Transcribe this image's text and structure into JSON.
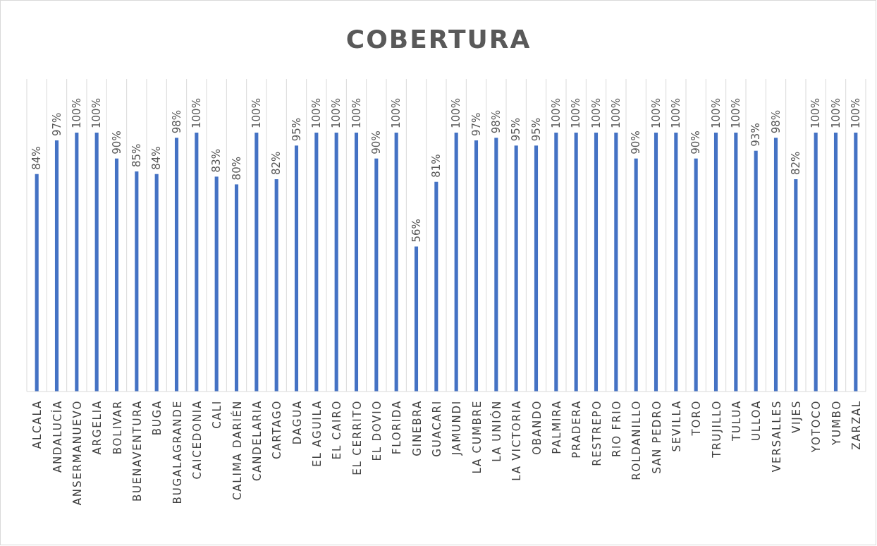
{
  "chart_data": {
    "type": "bar",
    "title": "COBERTURA",
    "categories": [
      "ALCALA",
      "ANDALUCÍA",
      "ANSERMANUEVO",
      "ARGELIA",
      "BOLIVAR",
      "BUENAVENTURA",
      "BUGA",
      "BUGALAGRANDE",
      "CAICEDONIA",
      "CALI",
      "CALIMA DARIÉN",
      "CANDELARIA",
      "CARTAGO",
      "DAGUA",
      "EL AGUILA",
      "EL CAIRO",
      "EL CERRITO",
      "EL DOVIO",
      "FLORIDA",
      "GINEBRA",
      "GUACARI",
      "JAMUNDI",
      "LA CUMBRE",
      "LA UNIÓN",
      "LA VICTORIA",
      "OBANDO",
      "PALMIRA",
      "PRADERA",
      "RESTREPO",
      "RIO FRIO",
      "ROLDANILLO",
      "SAN PEDRO",
      "SEVILLA",
      "TORO",
      "TRUJILLO",
      "TULUA",
      "ULLOA",
      "VERSALLES",
      "VIJES",
      "YOTOCO",
      "YUMBO",
      "ZARZAL"
    ],
    "values": [
      84,
      97,
      100,
      100,
      90,
      85,
      84,
      98,
      100,
      83,
      80,
      100,
      82,
      95,
      100,
      100,
      100,
      90,
      100,
      56,
      81,
      100,
      97,
      98,
      95,
      95,
      100,
      100,
      100,
      100,
      90,
      100,
      100,
      90,
      100,
      100,
      93,
      98,
      82,
      100,
      100,
      100
    ],
    "value_labels": [
      "84%",
      "97%",
      "100%",
      "100%",
      "90%",
      "85%",
      "84%",
      "98%",
      "100%",
      "83%",
      "80%",
      "100%",
      "82%",
      "95%",
      "100%",
      "100%",
      "100%",
      "90%",
      "100%",
      "56%",
      "81%",
      "100%",
      "97%",
      "98%",
      "95%",
      "95%",
      "100%",
      "100%",
      "100%",
      "100%",
      "90%",
      "100%",
      "100%",
      "90%",
      "100%",
      "100%",
      "93%",
      "98%",
      "82%",
      "100%",
      "100%",
      "100%"
    ],
    "color": "#4472c4",
    "ylim": [
      0,
      100
    ],
    "tick_labels": "x",
    "grid": "x"
  }
}
